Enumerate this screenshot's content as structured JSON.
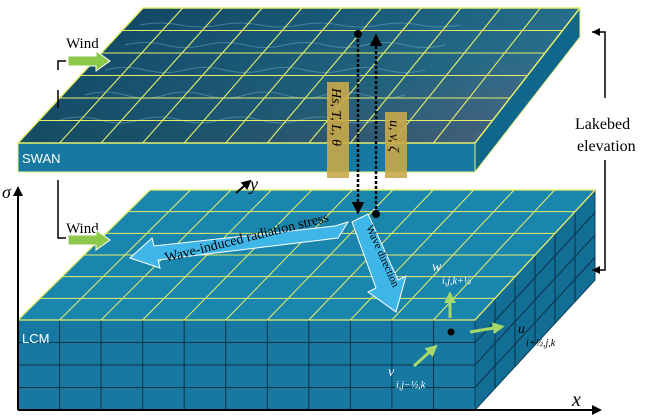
{
  "labels": {
    "wind_top": "Wind",
    "wind_bottom": "Wind",
    "swan": "SWAN",
    "lcm": "LCM",
    "lakebed_line1": "Lakebed",
    "lakebed_line2": "elevation",
    "radiation_stress": "Wave-induced radiation stress",
    "wave_direction": "Wave direction",
    "swan_outputs": "Hs, T, L, θ",
    "lcm_outputs": "u, v, ζ",
    "axis_sigma": "σ",
    "axis_x": "x",
    "axis_y": "y",
    "w_base": "w",
    "w_sub": "i,j,k+½",
    "u_base": "u",
    "u_sub": "i+½,j,k",
    "v_base": "v",
    "v_sub": "i,j−½,k"
  },
  "colors": {
    "slab_face": "#1779a2",
    "slab_top": "#1a85ad",
    "grid_line": "#ffff80",
    "arrow_cyan": "#3fb6e8",
    "wind_arrow": "#8bc94a",
    "velocity_arrow": "#a6d96a",
    "label_box": "#c9a94a"
  }
}
